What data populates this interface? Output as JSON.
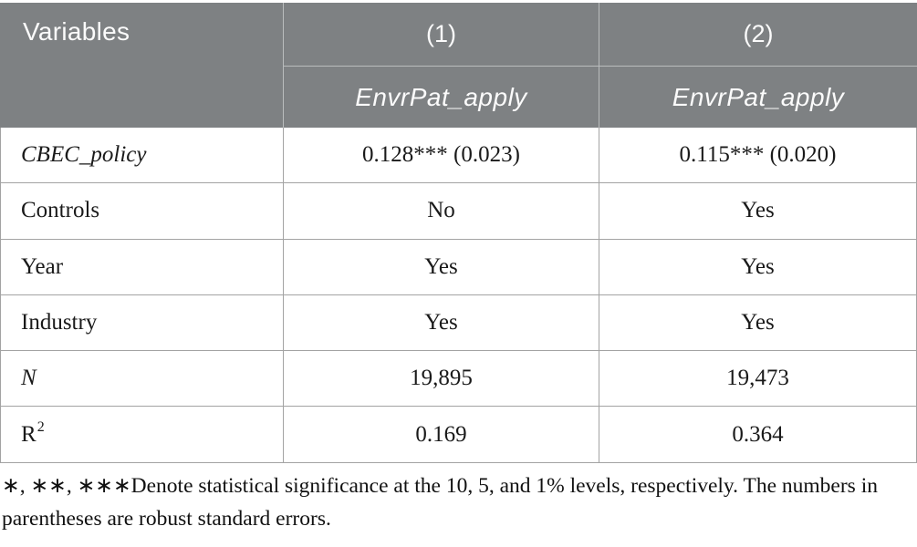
{
  "table": {
    "header": {
      "variables_label": "Variables",
      "columns": [
        {
          "number": "(1)",
          "dependent": "EnvrPat_apply"
        },
        {
          "number": "(2)",
          "dependent": "EnvrPat_apply"
        }
      ]
    },
    "rows": [
      {
        "label": "CBEC_policy",
        "values": [
          "0.128*** (0.023)",
          "0.115*** (0.020)"
        ]
      },
      {
        "label": "Controls",
        "values": [
          "No",
          "Yes"
        ]
      },
      {
        "label": "Year",
        "values": [
          "Yes",
          "Yes"
        ]
      },
      {
        "label": "Industry",
        "values": [
          "Yes",
          "Yes"
        ]
      },
      {
        "label": "N",
        "values": [
          "19,895",
          "19,473"
        ]
      },
      {
        "label": "R",
        "sup": "2",
        "values": [
          "0.169",
          "0.364"
        ]
      }
    ],
    "footnote": "∗, ∗∗, ∗∗∗Denote statistical significance at the 10, 5, and 1% levels, respectively. The numbers in parentheses are robust standard errors."
  },
  "colors": {
    "header_background": "#7e8183",
    "header_text": "#fbfbfb",
    "header_divider": "#b9bcbd",
    "body_border": "#a3a3a3",
    "body_text": "#1a1a1a"
  }
}
